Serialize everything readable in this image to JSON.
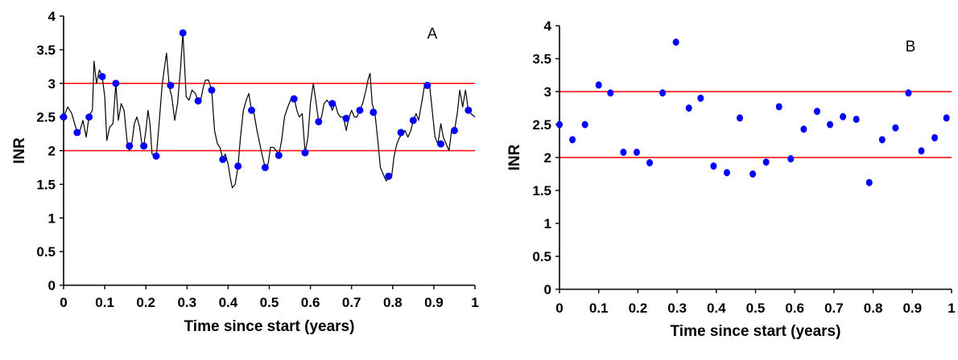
{
  "chart_data": [
    {
      "type": "line",
      "panel_label": "A",
      "xlabel": "Time since start (years)",
      "ylabel": "INR",
      "xlim": [
        0,
        1
      ],
      "ylim": [
        0,
        4
      ],
      "xticks": [
        "0",
        "0.1",
        "0.2",
        "0.3",
        "0.4",
        "0.5",
        "0.6",
        "0.7",
        "0.8",
        "0.9",
        "1"
      ],
      "yticks": [
        "0",
        "0.5",
        "1",
        "1.5",
        "2",
        "2.5",
        "3",
        "3.5",
        "4"
      ],
      "reference_lines": [
        2,
        3
      ],
      "reference_line_color": "#ff0000",
      "line_color": "#000000",
      "marker_color": "#0000ff",
      "grid": false,
      "series": [
        {
          "values": [
            [
              0,
              2.5
            ],
            [
              0.01,
              2.65
            ],
            [
              0.02,
              2.55
            ],
            [
              0.033,
              2.27
            ],
            [
              0.04,
              2.3
            ],
            [
              0.047,
              2.45
            ],
            [
              0.055,
              2.2
            ],
            [
              0.062,
              2.52
            ],
            [
              0.07,
              2.6
            ],
            [
              0.074,
              3.33
            ],
            [
              0.08,
              3.0
            ],
            [
              0.087,
              3.2
            ],
            [
              0.094,
              3.1
            ],
            [
              0.1,
              2.8
            ],
            [
              0.105,
              2.15
            ],
            [
              0.112,
              2.35
            ],
            [
              0.12,
              2.4
            ],
            [
              0.127,
              3.0
            ],
            [
              0.133,
              2.45
            ],
            [
              0.14,
              2.7
            ],
            [
              0.147,
              2.6
            ],
            [
              0.155,
              2.1
            ],
            [
              0.16,
              2.0
            ],
            [
              0.165,
              2.07
            ],
            [
              0.172,
              2.4
            ],
            [
              0.178,
              2.5
            ],
            [
              0.185,
              2.35
            ],
            [
              0.19,
              2.1
            ],
            [
              0.195,
              2.07
            ],
            [
              0.2,
              2.3
            ],
            [
              0.205,
              2.6
            ],
            [
              0.21,
              2.4
            ],
            [
              0.215,
              1.95
            ],
            [
              0.225,
              1.9
            ],
            [
              0.232,
              2.4
            ],
            [
              0.24,
              3.0
            ],
            [
              0.25,
              3.45
            ],
            [
              0.257,
              2.95
            ],
            [
              0.263,
              2.8
            ],
            [
              0.27,
              2.45
            ],
            [
              0.277,
              2.7
            ],
            [
              0.284,
              3.2
            ],
            [
              0.29,
              3.75
            ],
            [
              0.298,
              2.8
            ],
            [
              0.305,
              2.75
            ],
            [
              0.312,
              2.9
            ],
            [
              0.32,
              2.85
            ],
            [
              0.327,
              2.74
            ],
            [
              0.333,
              2.75
            ],
            [
              0.34,
              2.95
            ],
            [
              0.345,
              3.05
            ],
            [
              0.352,
              3.05
            ],
            [
              0.36,
              2.9
            ],
            [
              0.367,
              2.3
            ],
            [
              0.374,
              2.1
            ],
            [
              0.38,
              2.05
            ],
            [
              0.387,
              1.87
            ],
            [
              0.393,
              1.95
            ],
            [
              0.4,
              1.8
            ],
            [
              0.405,
              1.6
            ],
            [
              0.41,
              1.45
            ],
            [
              0.417,
              1.5
            ],
            [
              0.424,
              1.77
            ],
            [
              0.43,
              2.2
            ],
            [
              0.437,
              2.6
            ],
            [
              0.444,
              2.75
            ],
            [
              0.45,
              2.85
            ],
            [
              0.457,
              2.6
            ],
            [
              0.463,
              2.55
            ],
            [
              0.47,
              2.3
            ],
            [
              0.477,
              2.1
            ],
            [
              0.484,
              1.9
            ],
            [
              0.49,
              1.75
            ],
            [
              0.497,
              1.8
            ],
            [
              0.503,
              2.05
            ],
            [
              0.51,
              2.05
            ],
            [
              0.517,
              2.0
            ],
            [
              0.523,
              1.93
            ],
            [
              0.53,
              2.15
            ],
            [
              0.537,
              2.5
            ],
            [
              0.545,
              2.65
            ],
            [
              0.553,
              2.77
            ],
            [
              0.56,
              2.8
            ],
            [
              0.567,
              2.6
            ],
            [
              0.573,
              2.5
            ],
            [
              0.58,
              2.55
            ],
            [
              0.587,
              1.97
            ],
            [
              0.594,
              2.2
            ],
            [
              0.6,
              2.7
            ],
            [
              0.607,
              3.0
            ],
            [
              0.614,
              2.7
            ],
            [
              0.62,
              2.43
            ],
            [
              0.627,
              2.5
            ],
            [
              0.633,
              2.7
            ],
            [
              0.64,
              2.75
            ],
            [
              0.647,
              2.7
            ],
            [
              0.653,
              2.6
            ],
            [
              0.66,
              2.7
            ],
            [
              0.667,
              2.55
            ],
            [
              0.673,
              2.5
            ],
            [
              0.68,
              2.5
            ],
            [
              0.687,
              2.3
            ],
            [
              0.693,
              2.48
            ],
            [
              0.7,
              2.6
            ],
            [
              0.707,
              2.5
            ],
            [
              0.713,
              2.5
            ],
            [
              0.72,
              2.6
            ],
            [
              0.727,
              2.7
            ],
            [
              0.735,
              2.9
            ],
            [
              0.74,
              3.05
            ],
            [
              0.745,
              3.15
            ],
            [
              0.75,
              2.7
            ],
            [
              0.757,
              2.55
            ],
            [
              0.763,
              2.2
            ],
            [
              0.77,
              1.75
            ],
            [
              0.777,
              1.65
            ],
            [
              0.784,
              1.55
            ],
            [
              0.79,
              1.6
            ],
            [
              0.797,
              1.6
            ],
            [
              0.803,
              1.9
            ],
            [
              0.81,
              2.1
            ],
            [
              0.817,
              2.2
            ],
            [
              0.824,
              2.25
            ],
            [
              0.83,
              2.3
            ],
            [
              0.837,
              2.2
            ],
            [
              0.844,
              2.3
            ],
            [
              0.85,
              2.45
            ],
            [
              0.857,
              2.55
            ],
            [
              0.863,
              2.45
            ],
            [
              0.87,
              2.7
            ],
            [
              0.877,
              2.95
            ],
            [
              0.884,
              3.0
            ],
            [
              0.89,
              2.95
            ],
            [
              0.896,
              2.6
            ],
            [
              0.903,
              2.2
            ],
            [
              0.91,
              2.1
            ],
            [
              0.917,
              2.4
            ],
            [
              0.923,
              2.2
            ],
            [
              0.93,
              2.1
            ],
            [
              0.937,
              2.0
            ],
            [
              0.943,
              2.3
            ],
            [
              0.95,
              2.3
            ],
            [
              0.957,
              2.55
            ],
            [
              0.963,
              2.9
            ],
            [
              0.97,
              2.65
            ],
            [
              0.977,
              2.9
            ],
            [
              0.984,
              2.6
            ],
            [
              0.99,
              2.55
            ],
            [
              1.0,
              2.5
            ]
          ]
        },
        {
          "values": [
            [
              0,
              2.5
            ],
            [
              0.033,
              2.27
            ],
            [
              0.062,
              2.5
            ],
            [
              0.094,
              3.1
            ],
            [
              0.127,
              3.0
            ],
            [
              0.16,
              2.07
            ],
            [
              0.195,
              2.07
            ],
            [
              0.225,
              1.92
            ],
            [
              0.26,
              2.97
            ],
            [
              0.29,
              3.75
            ],
            [
              0.327,
              2.74
            ],
            [
              0.36,
              2.9
            ],
            [
              0.387,
              1.87
            ],
            [
              0.424,
              1.77
            ],
            [
              0.457,
              2.6
            ],
            [
              0.49,
              1.75
            ],
            [
              0.523,
              1.93
            ],
            [
              0.56,
              2.77
            ],
            [
              0.587,
              1.97
            ],
            [
              0.62,
              2.43
            ],
            [
              0.653,
              2.7
            ],
            [
              0.687,
              2.48
            ],
            [
              0.72,
              2.6
            ],
            [
              0.753,
              2.57
            ],
            [
              0.79,
              1.62
            ],
            [
              0.82,
              2.27
            ],
            [
              0.85,
              2.45
            ],
            [
              0.884,
              2.97
            ],
            [
              0.917,
              2.1
            ],
            [
              0.95,
              2.3
            ],
            [
              0.984,
              2.6
            ]
          ]
        }
      ]
    },
    {
      "type": "scatter",
      "panel_label": "B",
      "xlabel": "Time since start (years)",
      "ylabel": "INR",
      "xlim": [
        0,
        1
      ],
      "ylim": [
        0,
        4
      ],
      "xticks": [
        "0",
        "0.1",
        "0.2",
        "0.3",
        "0.4",
        "0.5",
        "0.6",
        "0.7",
        "0.8",
        "0.9",
        "1"
      ],
      "yticks": [
        "0",
        "0.5",
        "1",
        "1.5",
        "2",
        "2.5",
        "3",
        "3.5",
        "4"
      ],
      "reference_lines": [
        2,
        3
      ],
      "reference_line_color": "#ff0000",
      "marker_color": "#0000ff",
      "grid": false,
      "series": [
        {
          "values": [
            [
              0,
              2.5
            ],
            [
              0.033,
              2.27
            ],
            [
              0.065,
              2.5
            ],
            [
              0.1,
              3.1
            ],
            [
              0.13,
              2.98
            ],
            [
              0.163,
              2.08
            ],
            [
              0.197,
              2.08
            ],
            [
              0.23,
              1.92
            ],
            [
              0.263,
              2.98
            ],
            [
              0.297,
              3.75
            ],
            [
              0.33,
              2.75
            ],
            [
              0.36,
              2.9
            ],
            [
              0.393,
              1.87
            ],
            [
              0.427,
              1.77
            ],
            [
              0.46,
              2.6
            ],
            [
              0.493,
              1.75
            ],
            [
              0.527,
              1.93
            ],
            [
              0.56,
              2.77
            ],
            [
              0.59,
              1.98
            ],
            [
              0.623,
              2.43
            ],
            [
              0.657,
              2.7
            ],
            [
              0.69,
              2.5
            ],
            [
              0.723,
              2.62
            ],
            [
              0.757,
              2.58
            ],
            [
              0.79,
              1.62
            ],
            [
              0.823,
              2.27
            ],
            [
              0.857,
              2.45
            ],
            [
              0.89,
              2.98
            ],
            [
              0.923,
              2.1
            ],
            [
              0.957,
              2.3
            ],
            [
              0.987,
              2.6
            ]
          ]
        }
      ]
    }
  ]
}
